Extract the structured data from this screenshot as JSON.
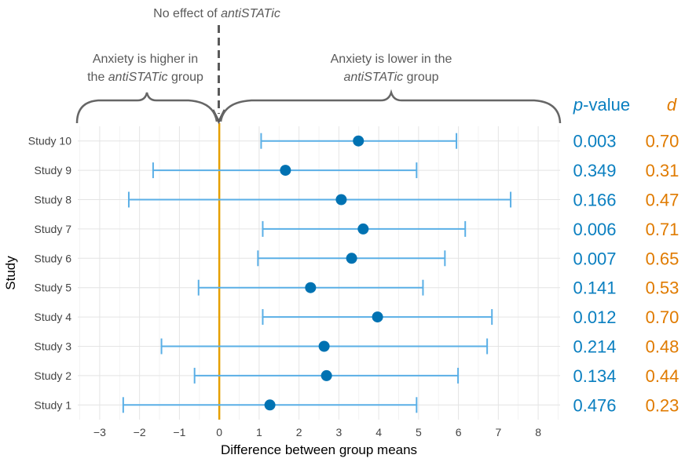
{
  "chart_data": {
    "type": "forest",
    "xlabel": "Difference between group means",
    "ylabel": "Study",
    "xlim": [
      -3.55,
      8.55
    ],
    "xticks": [
      -3,
      -2,
      -1,
      0,
      1,
      2,
      3,
      4,
      5,
      6,
      7,
      8
    ],
    "xtick_labels": [
      "−3",
      "−2",
      "−1",
      "0",
      "1",
      "2",
      "3",
      "4",
      "5",
      "6",
      "7",
      "8"
    ],
    "grid": true,
    "reference_line": 0,
    "colors": {
      "ci": "#5aafe6",
      "point": "#0072b2",
      "reference": "#e69f00",
      "pvalue": "#0a7fc0",
      "d": "#e07b00",
      "annotation": "#5a5a5a"
    },
    "studies": [
      "Study 10",
      "Study 9",
      "Study 8",
      "Study 7",
      "Study 6",
      "Study 5",
      "Study 4",
      "Study 3",
      "Study 2",
      "Study 1"
    ],
    "estimate": [
      3.49,
      1.66,
      3.06,
      3.61,
      3.32,
      2.29,
      3.97,
      2.63,
      2.69,
      1.27
    ],
    "ci_lower": [
      1.05,
      -1.66,
      -2.27,
      1.09,
      0.97,
      -0.52,
      1.09,
      -1.45,
      -0.62,
      -2.41
    ],
    "ci_upper": [
      5.95,
      4.95,
      7.31,
      6.17,
      5.66,
      5.11,
      6.84,
      6.72,
      5.99,
      4.95
    ],
    "pvalue_header_italic": "p",
    "pvalue_header_rest": "-value",
    "d_header": "d",
    "pvalues": [
      "0.003",
      "0.349",
      "0.166",
      "0.006",
      "0.007",
      "0.141",
      "0.012",
      "0.214",
      "0.134",
      "0.476"
    ],
    "d_values": [
      "0.70",
      "0.31",
      "0.47",
      "0.71",
      "0.65",
      "0.53",
      "0.70",
      "0.48",
      "0.44",
      "0.23"
    ],
    "annotations": {
      "no_effect": {
        "plain": "No effect of ",
        "italic": "antiSTATic"
      },
      "higher": {
        "line1": "Anxiety is higher in",
        "line2_plain": "the ",
        "line2_italic": "antiSTATic",
        "line2_rest": " group"
      },
      "lower": {
        "line1": "Anxiety is lower in the",
        "line2_italic": "antiSTATic",
        "line2_rest": " group"
      }
    }
  }
}
